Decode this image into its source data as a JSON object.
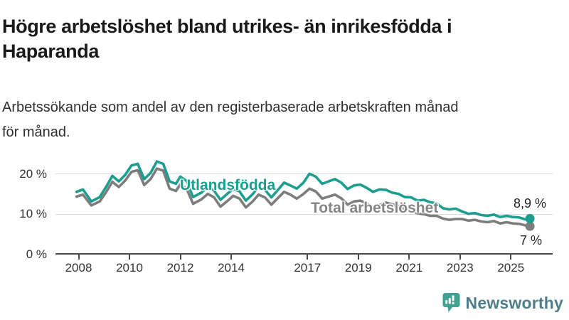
{
  "header": {
    "title": "Högre arbetslöshet bland utrikes- än inrikesfödda i\nHaparanda",
    "subtitle": "Arbetssökande som andel av den registerbaserade arbetskraften månad\nför månad."
  },
  "branding": {
    "name": "Newsworthy",
    "icon": "bar-chart-speech-bubble-icon",
    "icon_color": "#41a192",
    "text_color": "#4e7e8c"
  },
  "colors": {
    "foreign_born_line": "#1b9e8f",
    "total_line": "#7d7d7d",
    "gridline": "#dcdcdc",
    "axis": "#4a4a4a",
    "tick_text": "#333333"
  },
  "chart_data": {
    "type": "line",
    "title": "Högre arbetslöshet bland utrikes- än inrikesfödda i Haparanda",
    "subtitle": "Arbetssökande som andel av den registerbaserade arbetskraften månad för månad.",
    "xlabel": "",
    "ylabel": "",
    "ylim": [
      0,
      25
    ],
    "x_range": [
      2007.9,
      2025.75
    ],
    "grid": "horizontal",
    "x_ticks": [
      2008,
      2010,
      2012,
      2014,
      2017,
      2019,
      2021,
      2023,
      2025
    ],
    "y_ticks": [
      {
        "value": 0,
        "label": "0 %"
      },
      {
        "value": 10,
        "label": "10 %"
      },
      {
        "value": 20,
        "label": "20 %"
      }
    ],
    "series": [
      {
        "name": "Total arbetslöshet",
        "color": "#7d7d7d",
        "end_label": "7 %",
        "end_value": 7.0,
        "points": [
          [
            2007.92,
            14.4
          ],
          [
            2008.17,
            14.9
          ],
          [
            2008.5,
            12.2
          ],
          [
            2008.83,
            13.2
          ],
          [
            2009.08,
            15.5
          ],
          [
            2009.33,
            18.1
          ],
          [
            2009.58,
            16.8
          ],
          [
            2009.83,
            18.4
          ],
          [
            2010.08,
            20.6
          ],
          [
            2010.33,
            21.0
          ],
          [
            2010.58,
            17.3
          ],
          [
            2010.83,
            18.8
          ],
          [
            2011.08,
            21.4
          ],
          [
            2011.33,
            20.9
          ],
          [
            2011.58,
            16.4
          ],
          [
            2011.83,
            15.8
          ],
          [
            2012.0,
            17.5
          ],
          [
            2012.25,
            16.4
          ],
          [
            2012.5,
            12.6
          ],
          [
            2012.83,
            13.7
          ],
          [
            2013.08,
            15.1
          ],
          [
            2013.33,
            14.2
          ],
          [
            2013.58,
            11.9
          ],
          [
            2013.83,
            13.2
          ],
          [
            2014.08,
            14.6
          ],
          [
            2014.33,
            13.9
          ],
          [
            2014.58,
            11.7
          ],
          [
            2014.83,
            13.1
          ],
          [
            2015.08,
            14.9
          ],
          [
            2015.33,
            14.2
          ],
          [
            2015.58,
            12.4
          ],
          [
            2015.83,
            14.0
          ],
          [
            2016.08,
            15.6
          ],
          [
            2016.33,
            14.9
          ],
          [
            2016.58,
            13.9
          ],
          [
            2016.83,
            15.0
          ],
          [
            2017.08,
            16.4
          ],
          [
            2017.33,
            15.7
          ],
          [
            2017.58,
            13.9
          ],
          [
            2017.83,
            14.4
          ],
          [
            2018.08,
            14.9
          ],
          [
            2018.33,
            14.0
          ],
          [
            2018.58,
            12.4
          ],
          [
            2018.83,
            13.2
          ],
          [
            2019.08,
            13.4
          ],
          [
            2019.33,
            12.7
          ],
          [
            2019.58,
            11.7
          ],
          [
            2019.83,
            12.3
          ],
          [
            2020.08,
            12.9
          ],
          [
            2020.33,
            12.5
          ],
          [
            2020.58,
            12.1
          ],
          [
            2020.83,
            11.3
          ],
          [
            2021.08,
            11.0
          ],
          [
            2021.33,
            10.2
          ],
          [
            2021.58,
            10.0
          ],
          [
            2021.83,
            9.6
          ],
          [
            2022.08,
            9.6
          ],
          [
            2022.33,
            8.9
          ],
          [
            2022.58,
            8.6
          ],
          [
            2022.83,
            8.8
          ],
          [
            2023.08,
            8.8
          ],
          [
            2023.33,
            8.4
          ],
          [
            2023.58,
            8.6
          ],
          [
            2023.83,
            8.2
          ],
          [
            2024.08,
            8.0
          ],
          [
            2024.33,
            8.3
          ],
          [
            2024.58,
            7.7
          ],
          [
            2024.83,
            8.0
          ],
          [
            2025.08,
            7.7
          ],
          [
            2025.33,
            7.6
          ],
          [
            2025.58,
            7.2
          ],
          [
            2025.75,
            7.0
          ]
        ]
      },
      {
        "name": "Utlandsfödda",
        "color": "#1b9e8f",
        "end_label": "8,9 %",
        "end_value": 8.9,
        "points": [
          [
            2007.92,
            15.6
          ],
          [
            2008.17,
            16.2
          ],
          [
            2008.5,
            13.2
          ],
          [
            2008.83,
            14.3
          ],
          [
            2009.08,
            16.8
          ],
          [
            2009.33,
            19.6
          ],
          [
            2009.58,
            18.2
          ],
          [
            2009.83,
            19.8
          ],
          [
            2010.08,
            22.2
          ],
          [
            2010.33,
            22.6
          ],
          [
            2010.58,
            18.8
          ],
          [
            2010.83,
            20.3
          ],
          [
            2011.08,
            23.2
          ],
          [
            2011.33,
            22.6
          ],
          [
            2011.58,
            18.2
          ],
          [
            2011.83,
            17.6
          ],
          [
            2012.0,
            19.4
          ],
          [
            2012.25,
            18.3
          ],
          [
            2012.5,
            14.3
          ],
          [
            2012.83,
            15.4
          ],
          [
            2013.08,
            16.9
          ],
          [
            2013.33,
            15.9
          ],
          [
            2013.58,
            13.6
          ],
          [
            2013.83,
            15.0
          ],
          [
            2014.08,
            16.4
          ],
          [
            2014.33,
            15.7
          ],
          [
            2014.58,
            13.4
          ],
          [
            2014.83,
            14.9
          ],
          [
            2015.08,
            16.9
          ],
          [
            2015.33,
            16.1
          ],
          [
            2015.58,
            14.2
          ],
          [
            2015.83,
            16.0
          ],
          [
            2016.08,
            17.9
          ],
          [
            2016.33,
            17.2
          ],
          [
            2016.58,
            16.4
          ],
          [
            2016.83,
            17.8
          ],
          [
            2017.08,
            20.1
          ],
          [
            2017.33,
            19.4
          ],
          [
            2017.58,
            17.6
          ],
          [
            2017.83,
            18.2
          ],
          [
            2018.08,
            18.8
          ],
          [
            2018.33,
            17.9
          ],
          [
            2018.58,
            16.3
          ],
          [
            2018.83,
            17.2
          ],
          [
            2019.08,
            17.4
          ],
          [
            2019.33,
            16.6
          ],
          [
            2019.58,
            15.6
          ],
          [
            2019.83,
            16.2
          ],
          [
            2020.08,
            16.1
          ],
          [
            2020.33,
            15.4
          ],
          [
            2020.58,
            15.1
          ],
          [
            2020.83,
            14.3
          ],
          [
            2021.08,
            14.2
          ],
          [
            2021.33,
            13.4
          ],
          [
            2021.58,
            13.6
          ],
          [
            2021.83,
            13.0
          ],
          [
            2022.08,
            12.7
          ],
          [
            2022.33,
            11.5
          ],
          [
            2022.58,
            11.2
          ],
          [
            2022.83,
            11.4
          ],
          [
            2023.08,
            10.7
          ],
          [
            2023.33,
            10.1
          ],
          [
            2023.58,
            10.3
          ],
          [
            2023.83,
            9.8
          ],
          [
            2024.08,
            9.6
          ],
          [
            2024.33,
            9.9
          ],
          [
            2024.58,
            9.3
          ],
          [
            2024.83,
            9.6
          ],
          [
            2025.08,
            9.3
          ],
          [
            2025.33,
            9.2
          ],
          [
            2025.58,
            8.7
          ],
          [
            2025.75,
            8.9
          ]
        ]
      }
    ],
    "legend_position": "inline-labels"
  }
}
